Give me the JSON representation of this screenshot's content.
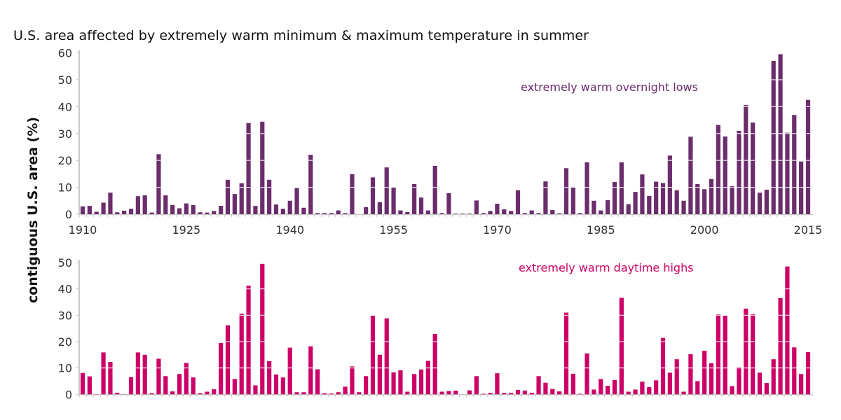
{
  "chart_data": [
    {
      "type": "bar",
      "title": "U.S. area affected by extremely warm minimum & maximum temperature in summer",
      "ylabel": "contiguous U.S. area (%)",
      "xlabel": "",
      "series_name": "extremely warm overnight lows",
      "color": "#6b2d6b",
      "x_start": 1910,
      "x_end": 2015,
      "ylim": [
        0,
        60
      ],
      "yticks": [
        0,
        10,
        20,
        30,
        40,
        50,
        60
      ],
      "xticks": [
        1910,
        1925,
        1940,
        1955,
        1970,
        1985,
        2000,
        2015
      ],
      "gridlines": "white breaks inside bars at each 10%",
      "values": [
        2.9,
        3.1,
        0.9,
        4.3,
        8.0,
        0.7,
        1.3,
        2.0,
        6.7,
        7.0,
        0.6,
        22.3,
        7.0,
        3.4,
        2.2,
        4.0,
        3.4,
        0.7,
        0.6,
        1.2,
        3.1,
        12.8,
        7.5,
        11.5,
        33.9,
        3.1,
        34.4,
        12.8,
        3.6,
        2.0,
        5.0,
        9.7,
        2.4,
        22.1,
        0.4,
        0.4,
        0.4,
        1.4,
        0.4,
        14.9,
        0.0,
        2.6,
        13.7,
        4.5,
        17.4,
        9.9,
        1.4,
        0.8,
        11.2,
        6.2,
        1.4,
        18.0,
        0.4,
        7.8,
        0.2,
        0.2,
        0.2,
        5.1,
        0.4,
        1.2,
        3.9,
        1.8,
        1.2,
        8.9,
        0.4,
        1.4,
        0.4,
        12.2,
        1.6,
        0.3,
        17.1,
        9.9,
        0.4,
        19.3,
        5.0,
        1.4,
        5.2,
        12.0,
        19.3,
        3.7,
        8.3,
        14.8,
        6.8,
        12.1,
        11.6,
        21.8,
        8.9,
        5.0,
        28.8,
        11.2,
        9.3,
        13.1,
        33.2,
        28.9,
        10.4,
        31.0,
        40.6,
        34.1,
        8.0,
        9.1,
        57.0,
        59.5,
        30.3,
        36.9,
        19.6,
        42.5
      ]
    },
    {
      "type": "bar",
      "series_name": "extremely warm daytime highs",
      "color": "#cc0066",
      "x_start": 1910,
      "x_end": 2015,
      "ylim": [
        0,
        50
      ],
      "yticks": [
        0,
        10,
        20,
        30,
        40,
        50
      ],
      "xticks": [],
      "gridlines": "white breaks inside bars at each 10%",
      "values": [
        8.1,
        6.8,
        0.1,
        15.9,
        12.3,
        0.6,
        0.1,
        6.5,
        15.9,
        15.0,
        0.4,
        13.5,
        6.9,
        1.1,
        7.7,
        11.9,
        6.4,
        0.4,
        1.0,
        1.9,
        19.5,
        26.2,
        5.8,
        30.6,
        41.2,
        3.4,
        49.5,
        12.6,
        7.5,
        6.4,
        17.7,
        0.8,
        0.8,
        18.2,
        9.5,
        0.4,
        0.3,
        0.8,
        2.9,
        10.6,
        0.8,
        6.9,
        29.8,
        15.0,
        28.8,
        8.3,
        9.1,
        1.0,
        7.7,
        9.4,
        12.7,
        22.9,
        1.0,
        1.2,
        1.4,
        0.0,
        1.5,
        6.9,
        0.2,
        0.5,
        8.0,
        0.5,
        0.5,
        1.7,
        1.4,
        0.6,
        6.9,
        4.4,
        2.0,
        1.1,
        31.0,
        7.8,
        0.2,
        15.5,
        1.8,
        5.8,
        3.2,
        5.4,
        36.6,
        1.0,
        1.8,
        4.8,
        2.7,
        5.3,
        21.4,
        8.2,
        13.3,
        1.0,
        15.2,
        5.0,
        16.5,
        11.8,
        30.3,
        29.8,
        3.1,
        10.3,
        32.5,
        30.4,
        8.2,
        4.3,
        13.3,
        36.5,
        48.5,
        17.8,
        7.7,
        16.0
      ]
    }
  ]
}
